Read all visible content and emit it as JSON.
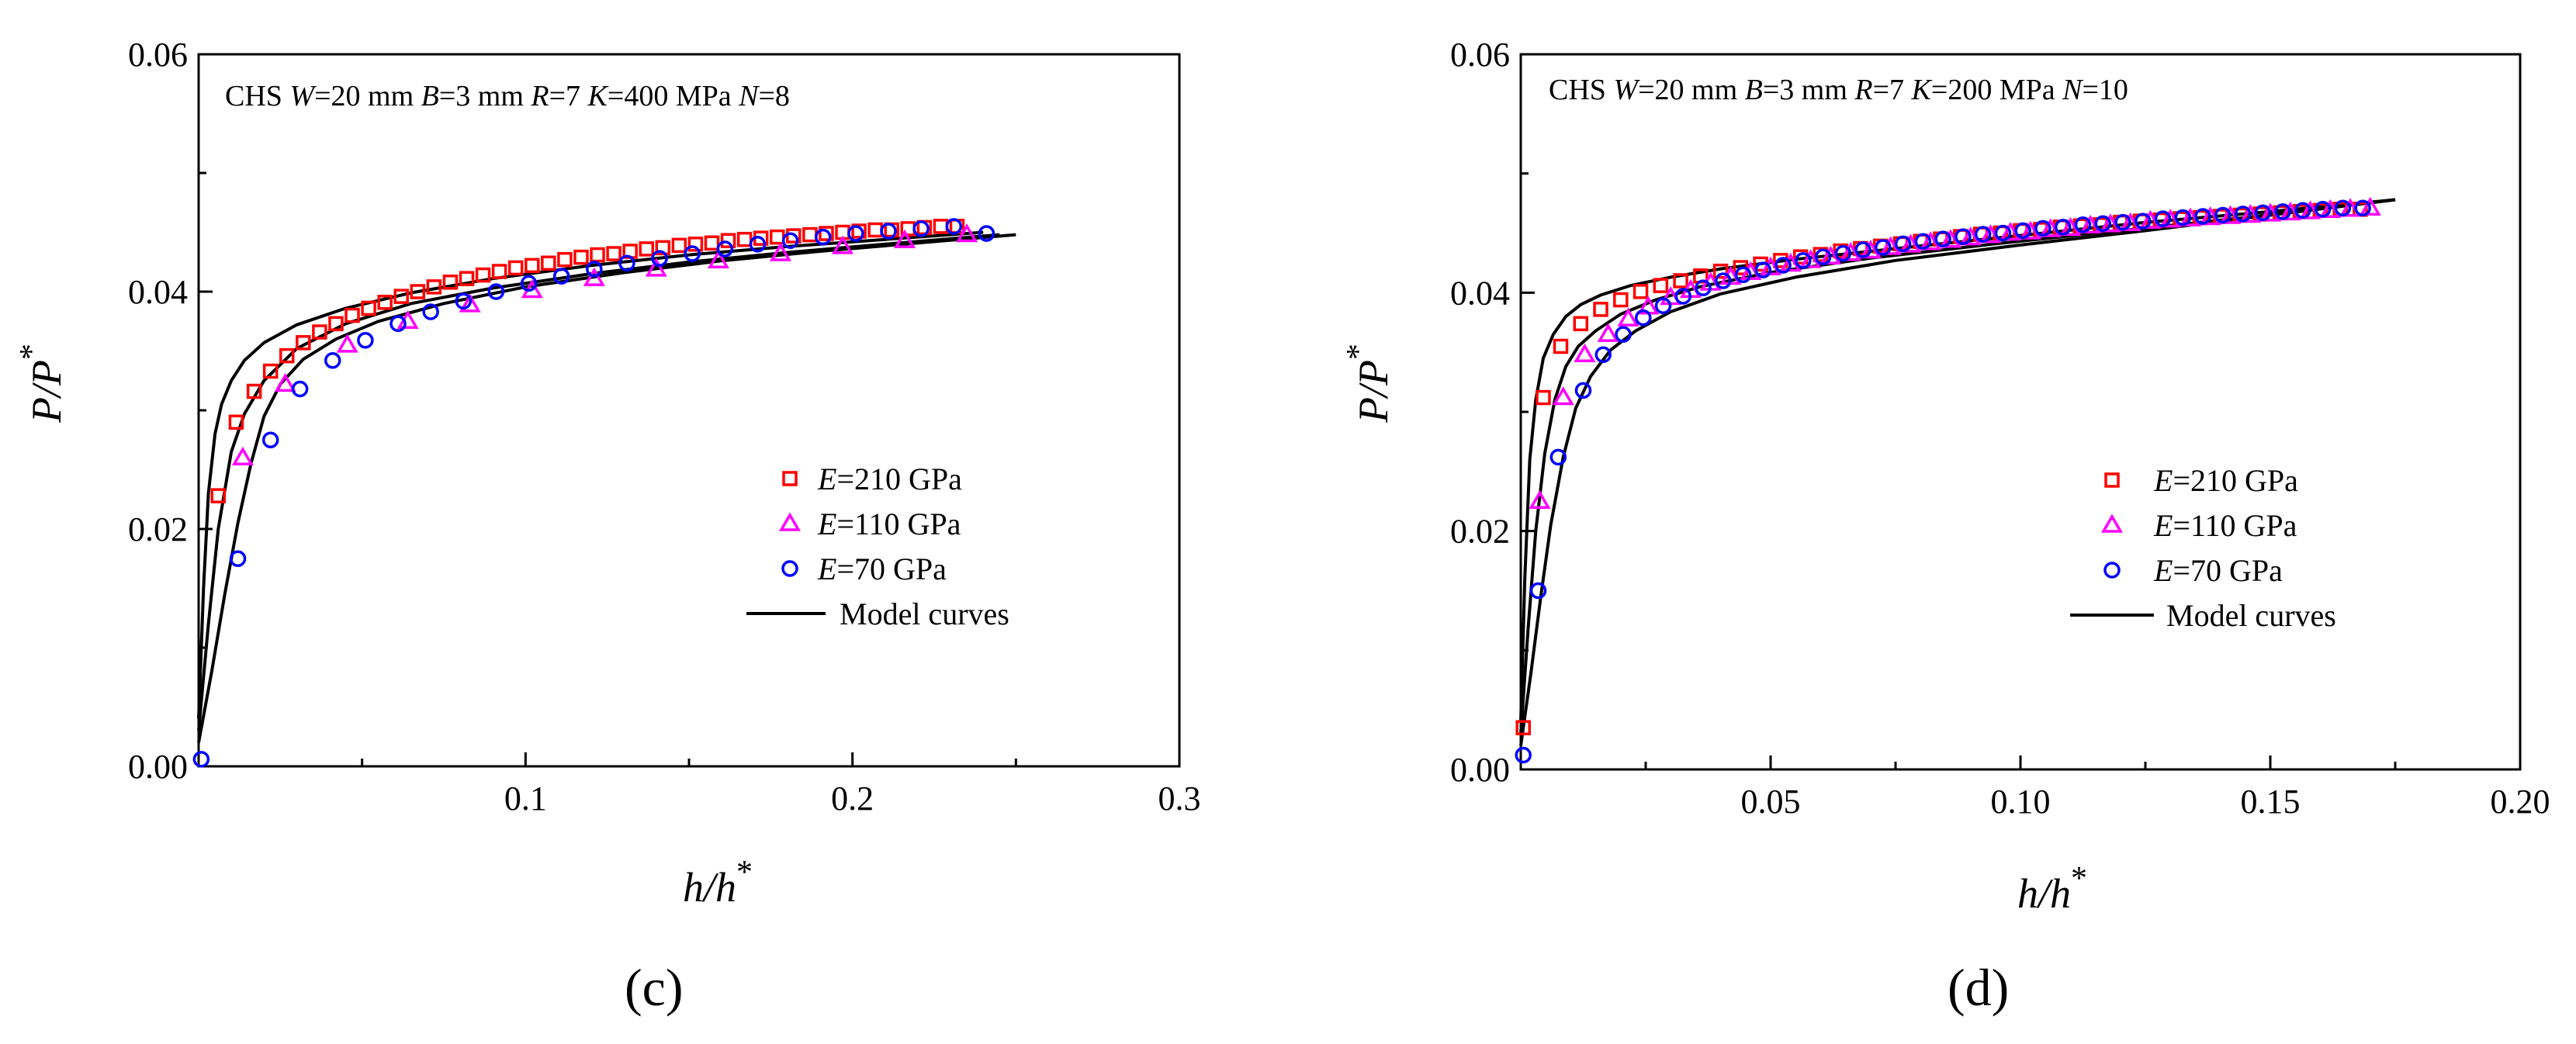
{
  "colors": {
    "e210": "#ff0000",
    "e110": "#ff00ff",
    "e70": "#0000ff",
    "model": "#000000"
  },
  "chart_data": [
    {
      "type": "scatter",
      "caption": "(c)",
      "annotation": [
        {
          "t": "CHS ",
          "i": false
        },
        {
          "t": "W",
          "i": true
        },
        {
          "t": "=20 mm ",
          "i": false
        },
        {
          "t": "B",
          "i": true
        },
        {
          "t": "=3 mm ",
          "i": false
        },
        {
          "t": "R",
          "i": true
        },
        {
          "t": "=7 ",
          "i": false
        },
        {
          "t": "K",
          "i": true
        },
        {
          "t": "=400 MPa  ",
          "i": false
        },
        {
          "t": "N",
          "i": true
        },
        {
          "t": "=8",
          "i": false
        }
      ],
      "xlabel": {
        "main": "h/h",
        "sup": "*"
      },
      "ylabel": {
        "main": "P/P",
        "sup": "*"
      },
      "xlim": [
        0,
        0.3
      ],
      "ylim": [
        0,
        0.06
      ],
      "xticks": [
        0.1,
        0.2,
        0.3
      ],
      "xtick_labels": [
        "0.1",
        "0.2",
        "0.3"
      ],
      "yticks": [
        0,
        0.02,
        0.04,
        0.06
      ],
      "ytick_labels": [
        "0.00",
        "0.02",
        "0.04",
        "0.06"
      ],
      "legend": {
        "position": "right-middle"
      },
      "series": [
        {
          "key": "e210",
          "name": "E=210 GPa",
          "name_italic": "E",
          "name_rest": "=210 GPa",
          "marker": "square",
          "x": [
            0.006,
            0.0115,
            0.017,
            0.022,
            0.027,
            0.032,
            0.037,
            0.042,
            0.047,
            0.052,
            0.057,
            0.062,
            0.067,
            0.072,
            0.077,
            0.082,
            0.087,
            0.092,
            0.097,
            0.102,
            0.107,
            0.112,
            0.117,
            0.122,
            0.127,
            0.132,
            0.137,
            0.142,
            0.147,
            0.152,
            0.157,
            0.162,
            0.167,
            0.172,
            0.177,
            0.182,
            0.187,
            0.192,
            0.197,
            0.202,
            0.207,
            0.212,
            0.217,
            0.222,
            0.227,
            0.232
          ],
          "y": [
            0.0228,
            0.029,
            0.0316,
            0.0333,
            0.0346,
            0.0357,
            0.0366,
            0.0373,
            0.038,
            0.0386,
            0.0391,
            0.0396,
            0.04,
            0.0404,
            0.0408,
            0.0411,
            0.0414,
            0.0417,
            0.042,
            0.0422,
            0.0424,
            0.0427,
            0.0429,
            0.0431,
            0.0432,
            0.0434,
            0.0436,
            0.0437,
            0.0439,
            0.044,
            0.0441,
            0.0443,
            0.0444,
            0.0445,
            0.0446,
            0.0447,
            0.0448,
            0.0449,
            0.045,
            0.0451,
            0.0452,
            0.0452,
            0.0453,
            0.0454,
            0.0455,
            0.0455
          ]
        },
        {
          "key": "e110",
          "name": "E=110 GPa",
          "name_italic": "E",
          "name_rest": "=110 GPa",
          "marker": "triangle",
          "x": [
            0.0135,
            0.0265,
            0.0455,
            0.064,
            0.083,
            0.102,
            0.121,
            0.14,
            0.159,
            0.178,
            0.197,
            0.216,
            0.235
          ],
          "y": [
            0.026,
            0.0322,
            0.0355,
            0.0375,
            0.0389,
            0.0401,
            0.0411,
            0.0419,
            0.0426,
            0.0432,
            0.0438,
            0.0443,
            0.0448
          ]
        },
        {
          "key": "e70",
          "name": "E=70 GPa",
          "name_italic": "E",
          "name_rest": "=70 GPa",
          "marker": "circle",
          "x": [
            0.0008,
            0.012,
            0.022,
            0.031,
            0.041,
            0.051,
            0.061,
            0.071,
            0.081,
            0.091,
            0.101,
            0.111,
            0.121,
            0.131,
            0.141,
            0.151,
            0.161,
            0.171,
            0.181,
            0.191,
            0.201,
            0.211,
            0.221,
            0.231,
            0.241
          ],
          "y": [
            0.0006,
            0.0175,
            0.0275,
            0.0318,
            0.0342,
            0.0359,
            0.0373,
            0.0383,
            0.0392,
            0.04,
            0.0407,
            0.0413,
            0.0419,
            0.0424,
            0.0428,
            0.0432,
            0.0436,
            0.044,
            0.0443,
            0.0446,
            0.0449,
            0.0451,
            0.0453,
            0.0455,
            0.0449
          ]
        },
        {
          "key": "model",
          "name": "Model curves",
          "marker": "line",
          "curves": [
            {
              "x": [
                0,
                0.0015,
                0.003,
                0.005,
                0.007,
                0.01,
                0.014,
                0.02,
                0.03,
                0.045,
                0.065,
                0.09,
                0.12,
                0.15,
                0.18,
                0.21,
                0.24
              ],
              "y": [
                0.004,
                0.015,
                0.023,
                0.028,
                0.0305,
                0.0325,
                0.0342,
                0.0357,
                0.0372,
                0.0386,
                0.0399,
                0.0411,
                0.0422,
                0.0431,
                0.0438,
                0.0444,
                0.045
              ]
            },
            {
              "x": [
                0,
                0.003,
                0.006,
                0.01,
                0.014,
                0.02,
                0.03,
                0.045,
                0.065,
                0.09,
                0.12,
                0.15,
                0.18,
                0.21,
                0.245
              ],
              "y": [
                0.003,
                0.012,
                0.02,
                0.0265,
                0.0297,
                0.0325,
                0.0352,
                0.0373,
                0.039,
                0.0403,
                0.0415,
                0.0425,
                0.0433,
                0.044,
                0.0448
              ]
            },
            {
              "x": [
                0,
                0.004,
                0.008,
                0.012,
                0.016,
                0.02,
                0.025,
                0.032,
                0.042,
                0.055,
                0.075,
                0.1,
                0.13,
                0.16,
                0.19,
                0.22,
                0.25
              ],
              "y": [
                0.002,
                0.008,
                0.0145,
                0.0205,
                0.0255,
                0.0295,
                0.0322,
                0.0343,
                0.036,
                0.0375,
                0.039,
                0.0404,
                0.0416,
                0.0426,
                0.0434,
                0.0441,
                0.0448
              ]
            }
          ]
        }
      ]
    },
    {
      "type": "scatter",
      "caption": "(d)",
      "annotation": [
        {
          "t": "CHS ",
          "i": false
        },
        {
          "t": "W",
          "i": true
        },
        {
          "t": "=20 mm ",
          "i": false
        },
        {
          "t": "B",
          "i": true
        },
        {
          "t": "=3 mm ",
          "i": false
        },
        {
          "t": "R",
          "i": true
        },
        {
          "t": "=7 ",
          "i": false
        },
        {
          "t": "K",
          "i": true
        },
        {
          "t": "=200 MPa  ",
          "i": false
        },
        {
          "t": "N",
          "i": true
        },
        {
          "t": "=10",
          "i": false
        }
      ],
      "xlabel": {
        "main": "h/h",
        "sup": "*"
      },
      "ylabel": {
        "main": "P/P",
        "sup": "*"
      },
      "xlim": [
        0,
        0.2
      ],
      "ylim": [
        0,
        0.06
      ],
      "xticks": [
        0.05,
        0.1,
        0.15,
        0.2
      ],
      "xtick_labels": [
        "0.05",
        "0.10",
        "0.15",
        "0.20"
      ],
      "yticks": [
        0,
        0.02,
        0.04,
        0.06
      ],
      "ytick_labels": [
        "0.00",
        "0.02",
        "0.04",
        "0.06"
      ],
      "legend": {
        "position": "right-middle"
      },
      "series": [
        {
          "key": "e210",
          "name": "E=210 GPa",
          "name_italic": "E",
          "name_rest": "=210 GPa",
          "marker": "square",
          "x": [
            0.0005,
            0.0045,
            0.008,
            0.012,
            0.016,
            0.02,
            0.024,
            0.028,
            0.032,
            0.036,
            0.04,
            0.044,
            0.048,
            0.052,
            0.056,
            0.06,
            0.064,
            0.068,
            0.072,
            0.076,
            0.08,
            0.084,
            0.088,
            0.092,
            0.096,
            0.1,
            0.104,
            0.108,
            0.112,
            0.116,
            0.12,
            0.124,
            0.128,
            0.132,
            0.136,
            0.14,
            0.144,
            0.148,
            0.152,
            0.156,
            0.16,
            0.164,
            0.168
          ],
          "y": [
            0.0035,
            0.0312,
            0.0355,
            0.0374,
            0.0386,
            0.0394,
            0.0401,
            0.0406,
            0.041,
            0.0414,
            0.0418,
            0.0421,
            0.0424,
            0.0427,
            0.043,
            0.0432,
            0.0435,
            0.0437,
            0.0439,
            0.0441,
            0.0443,
            0.0445,
            0.0447,
            0.0449,
            0.045,
            0.0452,
            0.0453,
            0.0455,
            0.0456,
            0.0457,
            0.0459,
            0.046,
            0.0461,
            0.0462,
            0.0463,
            0.0464,
            0.0465,
            0.0466,
            0.0467,
            0.0468,
            0.0469,
            0.047,
            0.047
          ]
        },
        {
          "key": "e110",
          "name": "E=110 GPa",
          "name_italic": "E",
          "name_rest": "=110 GPa",
          "marker": "triangle",
          "x": [
            0.0038,
            0.0085,
            0.0128,
            0.0175,
            0.0215,
            0.0255,
            0.03,
            0.034,
            0.038,
            0.042,
            0.046,
            0.05,
            0.054,
            0.058,
            0.062,
            0.066,
            0.07,
            0.074,
            0.078,
            0.082,
            0.086,
            0.09,
            0.094,
            0.098,
            0.102,
            0.106,
            0.11,
            0.114,
            0.118,
            0.122,
            0.126,
            0.13,
            0.134,
            0.138,
            0.142,
            0.146,
            0.15,
            0.154,
            0.158,
            0.162,
            0.166,
            0.17
          ],
          "y": [
            0.0225,
            0.0312,
            0.0348,
            0.0365,
            0.0378,
            0.0388,
            0.0396,
            0.0402,
            0.0408,
            0.0413,
            0.0417,
            0.0421,
            0.0424,
            0.0427,
            0.043,
            0.0433,
            0.0435,
            0.0438,
            0.044,
            0.0442,
            0.0444,
            0.0446,
            0.0448,
            0.045,
            0.0451,
            0.0453,
            0.0454,
            0.0456,
            0.0457,
            0.0458,
            0.046,
            0.0461,
            0.0462,
            0.0463,
            0.0464,
            0.0465,
            0.0466,
            0.0467,
            0.0468,
            0.0469,
            0.047,
            0.0471
          ]
        },
        {
          "key": "e70",
          "name": "E=70 GPa",
          "name_italic": "E",
          "name_rest": "=70 GPa",
          "marker": "circle",
          "x": [
            0.0005,
            0.0035,
            0.0075,
            0.0125,
            0.0165,
            0.0205,
            0.0245,
            0.0285,
            0.0325,
            0.0365,
            0.0405,
            0.0445,
            0.0485,
            0.0525,
            0.0565,
            0.0605,
            0.0645,
            0.0685,
            0.0725,
            0.0765,
            0.0805,
            0.0845,
            0.0885,
            0.0925,
            0.0965,
            0.1005,
            0.1045,
            0.1085,
            0.1125,
            0.1165,
            0.1205,
            0.1245,
            0.1285,
            0.1325,
            0.1365,
            0.1405,
            0.1445,
            0.1485,
            0.1525,
            0.1565,
            0.1605,
            0.1645,
            0.1685
          ],
          "y": [
            0.0012,
            0.015,
            0.0262,
            0.0318,
            0.0348,
            0.0365,
            0.0379,
            0.0389,
            0.0397,
            0.0404,
            0.041,
            0.0415,
            0.0419,
            0.0423,
            0.0427,
            0.043,
            0.0433,
            0.0436,
            0.0438,
            0.0441,
            0.0443,
            0.0445,
            0.0447,
            0.0449,
            0.045,
            0.0452,
            0.0454,
            0.0455,
            0.0457,
            0.0458,
            0.0459,
            0.046,
            0.0462,
            0.0463,
            0.0464,
            0.0465,
            0.0466,
            0.0467,
            0.0468,
            0.0469,
            0.047,
            0.0471,
            0.0471
          ]
        },
        {
          "key": "model",
          "name": "Model curves",
          "marker": "line",
          "curves": [
            {
              "x": [
                0,
                0.0008,
                0.0018,
                0.003,
                0.0045,
                0.0065,
                0.009,
                0.012,
                0.016,
                0.022,
                0.03,
                0.04,
                0.055,
                0.075,
                0.1,
                0.125,
                0.15,
                0.175
              ],
              "y": [
                0.004,
                0.016,
                0.026,
                0.031,
                0.0345,
                0.0365,
                0.038,
                0.039,
                0.0398,
                0.0406,
                0.0413,
                0.042,
                0.0428,
                0.0437,
                0.0448,
                0.0459,
                0.0468,
                0.0478
              ]
            },
            {
              "x": [
                0,
                0.0015,
                0.003,
                0.0048,
                0.0068,
                0.009,
                0.0115,
                0.015,
                0.02,
                0.027,
                0.036,
                0.05,
                0.07,
                0.095,
                0.12,
                0.145,
                0.175
              ],
              "y": [
                0.003,
                0.012,
                0.02,
                0.0265,
                0.031,
                0.0338,
                0.0355,
                0.0368,
                0.0382,
                0.0394,
                0.0405,
                0.0417,
                0.0429,
                0.0441,
                0.0452,
                0.0463,
                0.0478
              ]
            },
            {
              "x": [
                0,
                0.002,
                0.004,
                0.006,
                0.0085,
                0.011,
                0.014,
                0.018,
                0.023,
                0.03,
                0.04,
                0.055,
                0.075,
                0.1,
                0.125,
                0.15,
                0.175
              ],
              "y": [
                0.002,
                0.008,
                0.0145,
                0.0205,
                0.0262,
                0.0303,
                0.033,
                0.0352,
                0.0368,
                0.0384,
                0.0399,
                0.0413,
                0.0427,
                0.044,
                0.0452,
                0.0465,
                0.0478
              ]
            }
          ]
        }
      ]
    }
  ]
}
